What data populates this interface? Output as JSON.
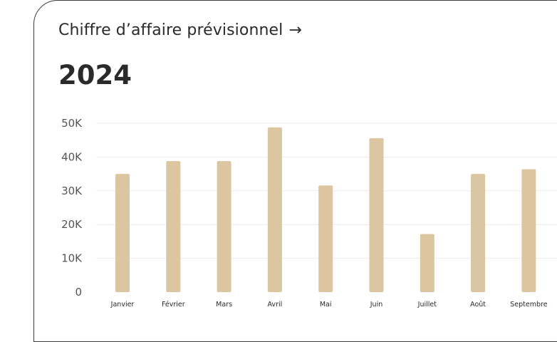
{
  "header": {
    "title": "Chiffre d’affaire prévisionnel",
    "arrow": "→",
    "year": "2024"
  },
  "colors": {
    "bar": "#dcc5a1",
    "grid": "#ececec",
    "text": "#2a2a2a",
    "axis_text": "#555555",
    "border": "#3a3a3a"
  },
  "chart_data": {
    "type": "bar",
    "categories": [
      "Janvier",
      "Février",
      "Mars",
      "Avril",
      "Mai",
      "Juin",
      "Juillet",
      "Août",
      "Septembre"
    ],
    "values": [
      35000,
      38800,
      38800,
      48800,
      31600,
      45600,
      17200,
      35000,
      36400
    ],
    "ylim": [
      0,
      50000
    ],
    "yticks": [
      0,
      10000,
      20000,
      30000,
      40000,
      50000
    ],
    "ytick_labels": [
      "0",
      "10K",
      "20K",
      "30K",
      "40K",
      "50K"
    ],
    "grid": true,
    "legend": "none"
  }
}
